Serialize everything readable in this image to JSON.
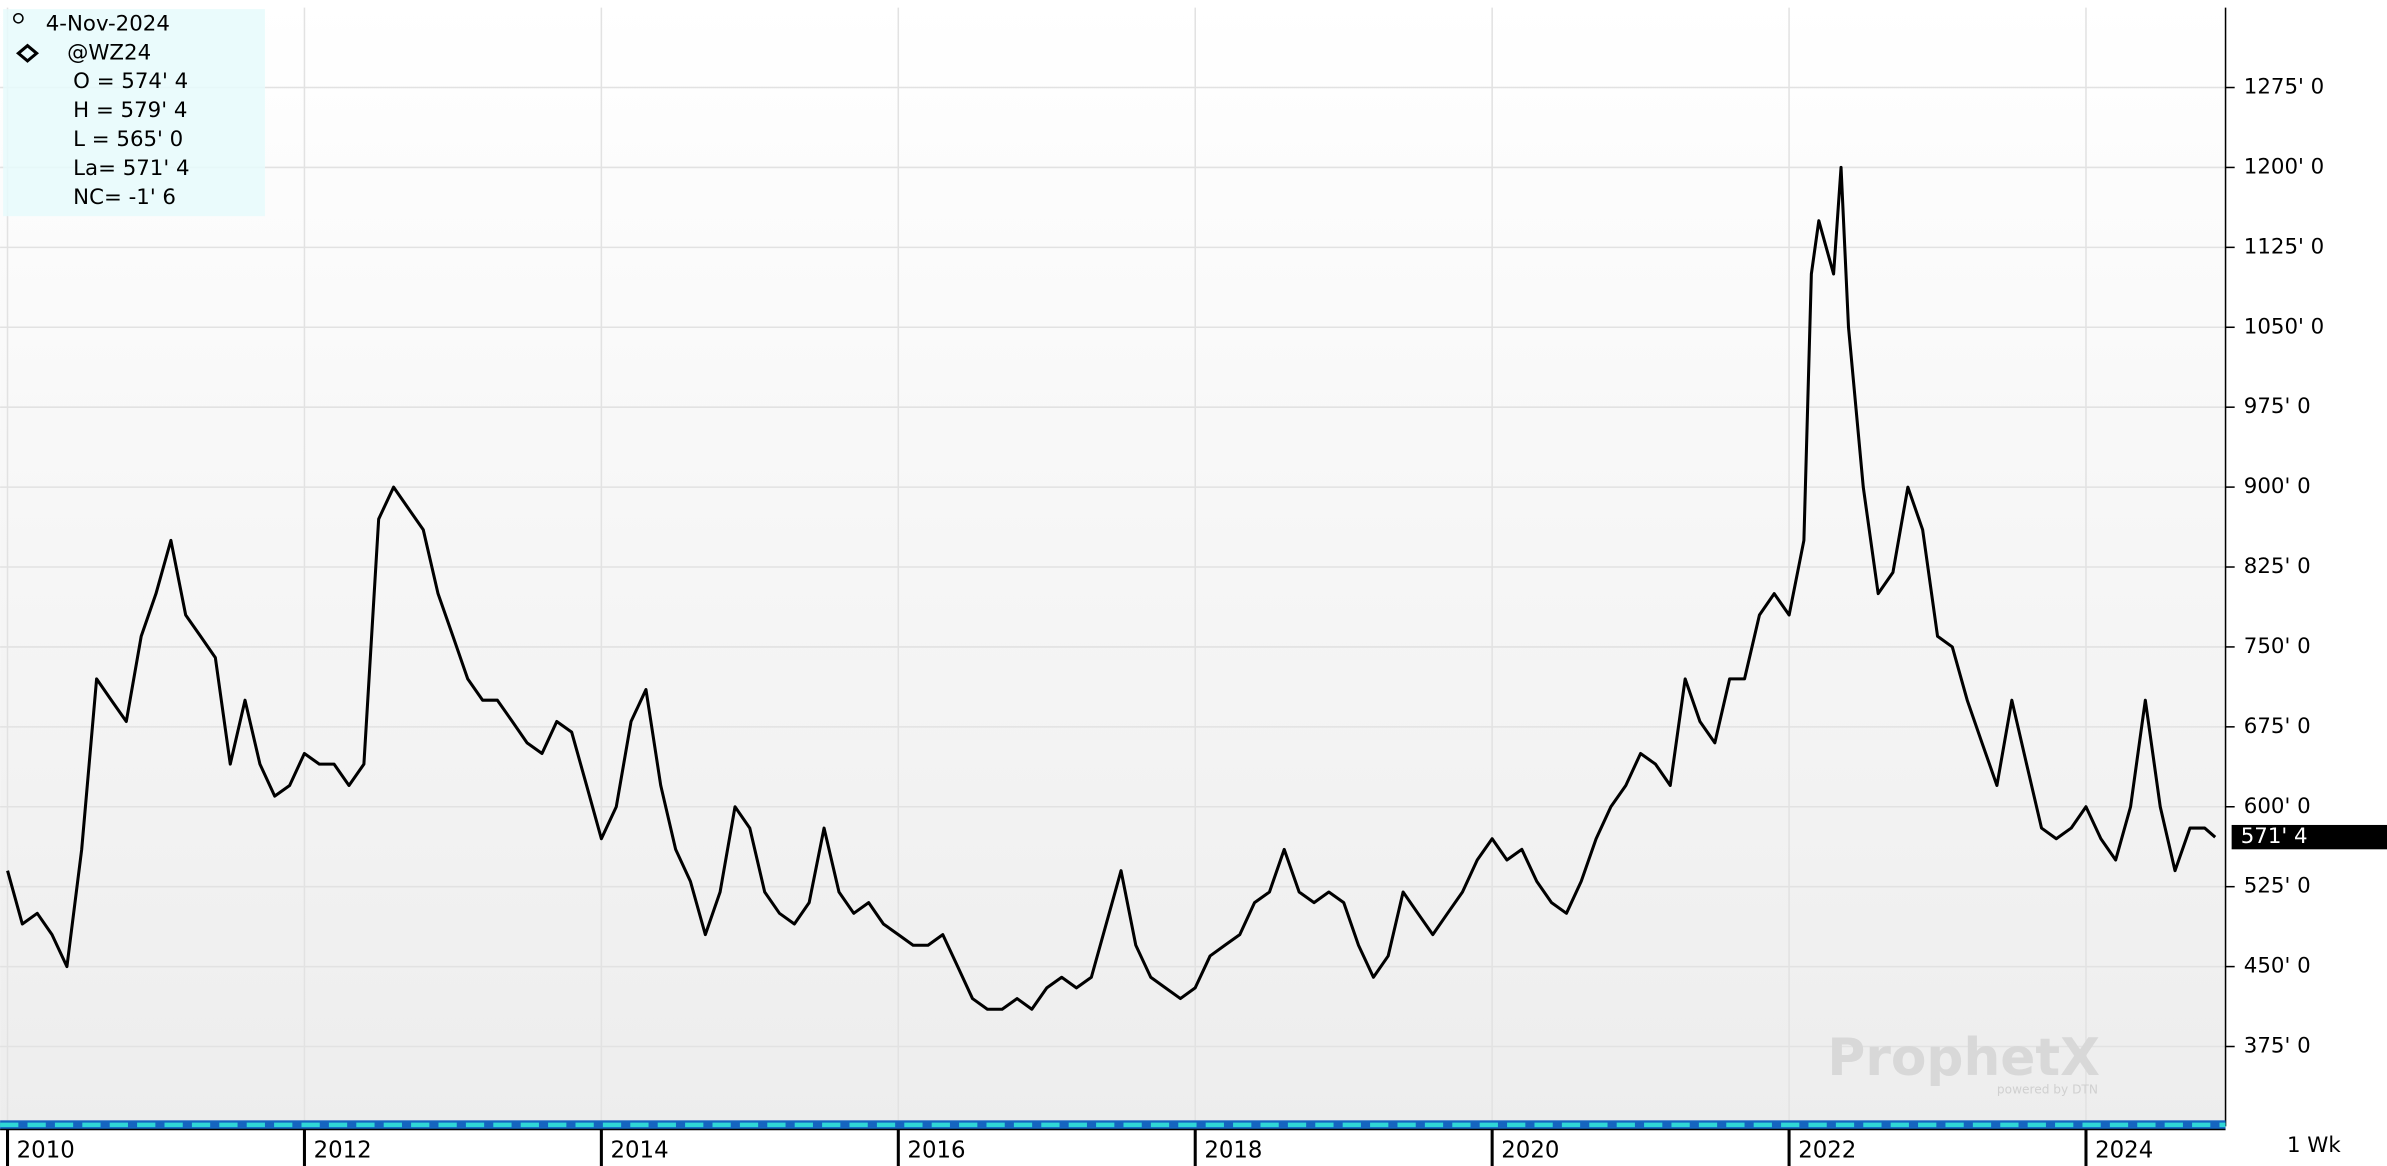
{
  "chart_data": {
    "type": "line",
    "info": {
      "date": "4-Nov-2024",
      "symbol": "@WZ24",
      "open": "O = 574' 4",
      "high": "H = 579' 4",
      "low": "L = 565' 0",
      "last": "La= 571' 4",
      "net_change": "NC= -1' 6"
    },
    "last_label": "571' 4",
    "period": "1 Wk",
    "watermark": "ProphetX",
    "watermark_sub": "powered by DTN",
    "grid": true,
    "color": "#000000",
    "xlim": [
      2009.95,
      2024.94
    ],
    "ylim": [
      300,
      1350
    ],
    "xticks": [
      2010,
      2012,
      2014,
      2016,
      2018,
      2020,
      2022,
      2024
    ],
    "yticks": [
      {
        "value": 375,
        "label": "375' 0"
      },
      {
        "value": 450,
        "label": "450' 0"
      },
      {
        "value": 525,
        "label": "525' 0"
      },
      {
        "value": 600,
        "label": "600' 0"
      },
      {
        "value": 675,
        "label": "675' 0"
      },
      {
        "value": 750,
        "label": "750' 0"
      },
      {
        "value": 825,
        "label": "825' 0"
      },
      {
        "value": 900,
        "label": "900' 0"
      },
      {
        "value": 975,
        "label": "975' 0"
      },
      {
        "value": 1050,
        "label": "1050' 0"
      },
      {
        "value": 1125,
        "label": "1125' 0"
      },
      {
        "value": 1200,
        "label": "1200' 0"
      },
      {
        "value": 1275,
        "label": "1275' 0"
      }
    ],
    "x": [
      2010.0,
      2010.1,
      2010.2,
      2010.3,
      2010.4,
      2010.5,
      2010.6,
      2010.7,
      2010.8,
      2010.9,
      2011.0,
      2011.1,
      2011.2,
      2011.3,
      2011.4,
      2011.5,
      2011.6,
      2011.7,
      2011.8,
      2011.9,
      2012.0,
      2012.1,
      2012.2,
      2012.3,
      2012.4,
      2012.5,
      2012.6,
      2012.7,
      2012.8,
      2012.9,
      2013.0,
      2013.1,
      2013.2,
      2013.3,
      2013.4,
      2013.5,
      2013.6,
      2013.7,
      2013.8,
      2013.9,
      2014.0,
      2014.1,
      2014.2,
      2014.3,
      2014.4,
      2014.5,
      2014.6,
      2014.7,
      2014.8,
      2014.9,
      2015.0,
      2015.1,
      2015.2,
      2015.3,
      2015.4,
      2015.5,
      2015.6,
      2015.7,
      2015.8,
      2015.9,
      2016.0,
      2016.1,
      2016.2,
      2016.3,
      2016.4,
      2016.5,
      2016.6,
      2016.7,
      2016.8,
      2016.9,
      2017.0,
      2017.1,
      2017.2,
      2017.3,
      2017.5,
      2017.6,
      2017.7,
      2017.8,
      2017.9,
      2018.0,
      2018.1,
      2018.2,
      2018.3,
      2018.4,
      2018.5,
      2018.6,
      2018.7,
      2018.8,
      2018.9,
      2019.0,
      2019.1,
      2019.2,
      2019.3,
      2019.4,
      2019.5,
      2019.6,
      2019.7,
      2019.8,
      2019.9,
      2020.0,
      2020.1,
      2020.2,
      2020.3,
      2020.4,
      2020.5,
      2020.6,
      2020.7,
      2020.8,
      2020.9,
      2021.0,
      2021.1,
      2021.2,
      2021.3,
      2021.4,
      2021.5,
      2021.6,
      2021.7,
      2021.8,
      2021.9,
      2022.0,
      2022.1,
      2022.15,
      2022.2,
      2022.3,
      2022.35,
      2022.4,
      2022.5,
      2022.6,
      2022.7,
      2022.8,
      2022.9,
      2023.0,
      2023.1,
      2023.2,
      2023.3,
      2023.4,
      2023.5,
      2023.6,
      2023.7,
      2023.8,
      2023.9,
      2024.0,
      2024.1,
      2024.2,
      2024.3,
      2024.4,
      2024.5,
      2024.6,
      2024.7,
      2024.8,
      2024.87
    ],
    "values": [
      540,
      490,
      500,
      480,
      450,
      560,
      720,
      700,
      680,
      760,
      800,
      850,
      780,
      760,
      740,
      640,
      700,
      640,
      610,
      620,
      650,
      640,
      640,
      620,
      640,
      870,
      900,
      880,
      860,
      800,
      760,
      720,
      700,
      700,
      680,
      660,
      650,
      680,
      670,
      620,
      570,
      600,
      680,
      710,
      620,
      560,
      530,
      480,
      520,
      600,
      580,
      520,
      500,
      490,
      510,
      580,
      520,
      500,
      510,
      490,
      480,
      470,
      470,
      480,
      450,
      420,
      410,
      410,
      420,
      410,
      430,
      440,
      430,
      440,
      540,
      470,
      440,
      430,
      420,
      430,
      460,
      470,
      480,
      510,
      520,
      560,
      520,
      510,
      520,
      510,
      470,
      440,
      460,
      520,
      500,
      480,
      500,
      520,
      550,
      570,
      550,
      560,
      530,
      510,
      500,
      530,
      570,
      600,
      620,
      650,
      640,
      620,
      720,
      680,
      660,
      720,
      720,
      780,
      800,
      780,
      850,
      1100,
      1150,
      1100,
      1200,
      1050,
      900,
      800,
      820,
      900,
      860,
      760,
      750,
      700,
      660,
      620,
      700,
      640,
      580,
      570,
      580,
      600,
      570,
      550,
      600,
      700,
      600,
      540,
      580,
      580,
      571.5
    ]
  }
}
